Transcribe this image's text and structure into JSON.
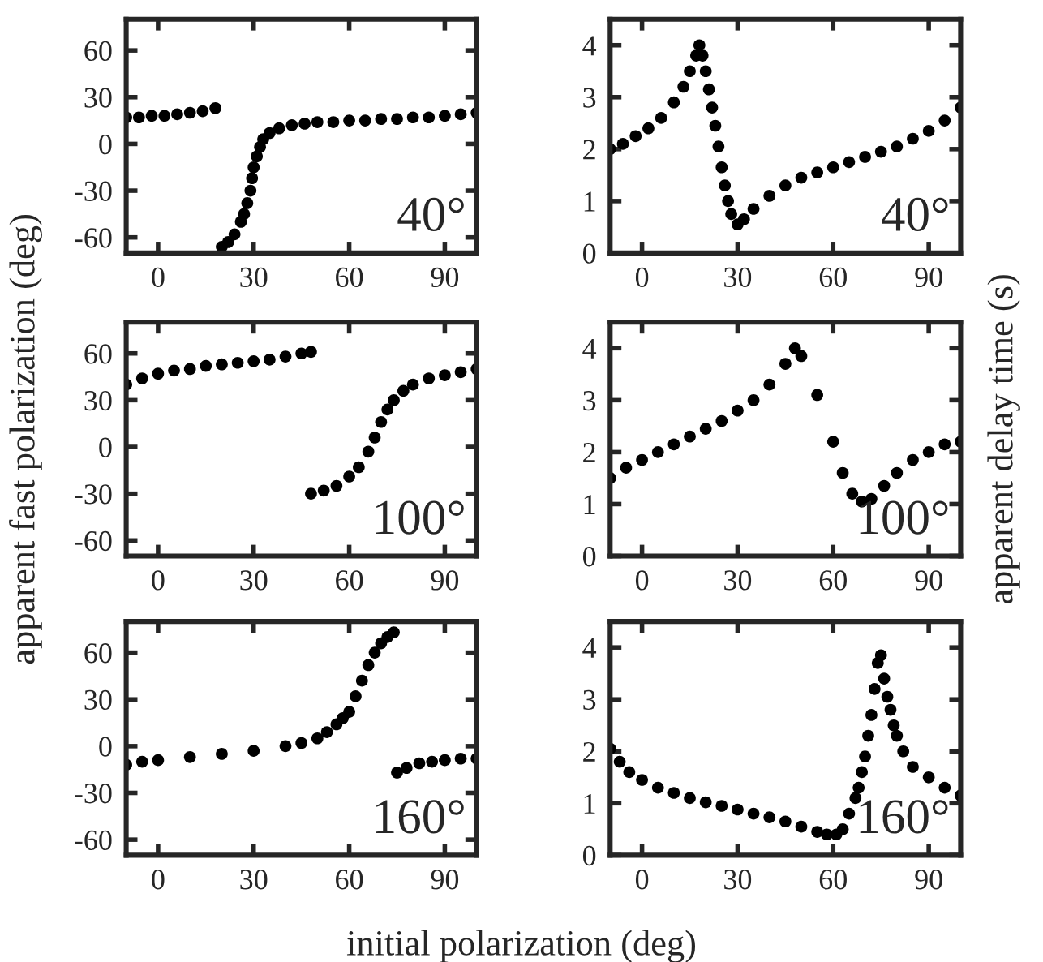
{
  "chart_data": [
    {
      "type": "scatter",
      "xlim": [
        -10,
        100
      ],
      "ylim": [
        -70,
        80
      ],
      "xticks": [
        0,
        30,
        60,
        90
      ],
      "yticks": [
        -60,
        -30,
        0,
        30,
        60
      ],
      "marker": "circle",
      "grid": false,
      "annotations": [
        "40°"
      ],
      "series": [
        {
          "color": "#000000",
          "x": [
            -10,
            -6,
            -2,
            2,
            6,
            10,
            14,
            18,
            20,
            22,
            24,
            26,
            27,
            28,
            29,
            29.5,
            30,
            31,
            32,
            33,
            35,
            38,
            42,
            46,
            50,
            55,
            60,
            65,
            70,
            75,
            80,
            85,
            90,
            95,
            100
          ],
          "values": [
            17,
            17,
            18,
            18,
            19,
            20,
            21,
            23,
            -66,
            -63,
            -58,
            -50,
            -45,
            -38,
            -30,
            -22,
            -15,
            -8,
            -2,
            3,
            7,
            10,
            12,
            13,
            14,
            14,
            15,
            15,
            16,
            16,
            17,
            17,
            18,
            19,
            20
          ]
        }
      ]
    },
    {
      "type": "scatter",
      "xlim": [
        -10,
        100
      ],
      "ylim": [
        0,
        4.5
      ],
      "xticks": [
        0,
        30,
        60,
        90
      ],
      "yticks": [
        0,
        1,
        2,
        3,
        4
      ],
      "marker": "circle",
      "grid": false,
      "annotations": [
        "40°"
      ],
      "series": [
        {
          "color": "#000000",
          "x": [
            -10,
            -6,
            -2,
            2,
            6,
            10,
            13,
            15,
            17,
            18,
            19,
            20,
            21,
            22,
            23,
            24,
            25,
            26,
            27,
            28,
            30,
            32,
            35,
            40,
            45,
            50,
            55,
            60,
            65,
            70,
            75,
            80,
            85,
            90,
            95,
            100
          ],
          "values": [
            2.0,
            2.1,
            2.25,
            2.4,
            2.6,
            2.9,
            3.2,
            3.5,
            3.8,
            4.0,
            3.8,
            3.5,
            3.15,
            2.8,
            2.45,
            2.05,
            1.65,
            1.3,
            1.0,
            0.75,
            0.55,
            0.65,
            0.85,
            1.1,
            1.3,
            1.45,
            1.55,
            1.65,
            1.75,
            1.85,
            1.95,
            2.05,
            2.2,
            2.35,
            2.55,
            2.8
          ]
        }
      ]
    },
    {
      "type": "scatter",
      "xlim": [
        -10,
        100
      ],
      "ylim": [
        -70,
        80
      ],
      "xticks": [
        0,
        30,
        60,
        90
      ],
      "yticks": [
        -60,
        -30,
        0,
        30,
        60
      ],
      "marker": "circle",
      "grid": false,
      "annotations": [
        "100°"
      ],
      "ylabel": "apparent fast polarization (deg)",
      "series": [
        {
          "color": "#000000",
          "x": [
            -10,
            -5,
            0,
            5,
            10,
            15,
            20,
            25,
            30,
            35,
            40,
            45,
            48,
            48,
            52,
            56,
            60,
            63,
            66,
            68,
            70,
            72,
            74,
            77,
            80,
            85,
            90,
            95,
            100
          ],
          "values": [
            40,
            44,
            47,
            49,
            50,
            52,
            53,
            54,
            55,
            56,
            58,
            60,
            61,
            -30,
            -28,
            -25,
            -19,
            -13,
            -3,
            6,
            16,
            24,
            30,
            36,
            40,
            44,
            46,
            48,
            50
          ]
        }
      ]
    },
    {
      "type": "scatter",
      "xlim": [
        -10,
        100
      ],
      "ylim": [
        0,
        4.5
      ],
      "xticks": [
        0,
        30,
        60,
        90
      ],
      "yticks": [
        0,
        1,
        2,
        3,
        4
      ],
      "marker": "circle",
      "grid": false,
      "annotations": [
        "100°"
      ],
      "ylabel": "apparent delay time (s)",
      "series": [
        {
          "color": "#000000",
          "x": [
            -10,
            -5,
            0,
            5,
            10,
            15,
            20,
            25,
            30,
            35,
            40,
            45,
            48,
            50,
            55,
            60,
            63,
            66,
            69,
            72,
            76,
            80,
            85,
            90,
            95,
            100
          ],
          "values": [
            1.5,
            1.7,
            1.85,
            2.0,
            2.15,
            2.3,
            2.45,
            2.6,
            2.8,
            3.0,
            3.3,
            3.7,
            4.0,
            3.85,
            3.1,
            2.2,
            1.6,
            1.2,
            1.05,
            1.1,
            1.35,
            1.6,
            1.85,
            2.0,
            2.15,
            2.2
          ]
        }
      ]
    },
    {
      "type": "scatter",
      "xlim": [
        -10,
        100
      ],
      "ylim": [
        -70,
        80
      ],
      "xticks": [
        0,
        30,
        60,
        90
      ],
      "yticks": [
        -60,
        -30,
        0,
        30,
        60
      ],
      "marker": "circle",
      "grid": false,
      "annotations": [
        "160°"
      ],
      "xlabel": "initial polarization (deg)",
      "series": [
        {
          "color": "#000000",
          "x": [
            -10,
            -5,
            0,
            10,
            20,
            30,
            40,
            45,
            50,
            53,
            56,
            58,
            60,
            62,
            64,
            66,
            68,
            70,
            72,
            74,
            75,
            78,
            82,
            86,
            90,
            95,
            100
          ],
          "values": [
            -12,
            -10,
            -9,
            -7,
            -5,
            -3,
            0,
            2,
            5,
            9,
            14,
            18,
            22,
            32,
            42,
            52,
            60,
            66,
            70,
            73,
            -17,
            -14,
            -11,
            -10,
            -9,
            -8,
            -8
          ]
        }
      ]
    },
    {
      "type": "scatter",
      "xlim": [
        -10,
        100
      ],
      "ylim": [
        0,
        4.5
      ],
      "xticks": [
        0,
        30,
        60,
        90
      ],
      "yticks": [
        0,
        1,
        2,
        3,
        4
      ],
      "marker": "circle",
      "grid": false,
      "annotations": [
        "160°"
      ],
      "series": [
        {
          "color": "#000000",
          "x": [
            -10,
            -7,
            -4,
            0,
            5,
            10,
            15,
            20,
            25,
            30,
            35,
            40,
            45,
            50,
            55,
            58,
            61,
            63,
            65,
            67,
            68,
            69,
            70,
            71,
            72,
            73,
            74,
            75,
            76,
            77,
            78,
            79,
            80,
            82,
            85,
            90,
            95,
            100
          ],
          "values": [
            2.05,
            1.8,
            1.6,
            1.45,
            1.3,
            1.2,
            1.1,
            1.02,
            0.95,
            0.88,
            0.8,
            0.73,
            0.65,
            0.55,
            0.45,
            0.4,
            0.4,
            0.5,
            0.8,
            1.1,
            1.3,
            1.6,
            1.9,
            2.3,
            2.7,
            3.2,
            3.7,
            3.85,
            3.4,
            3.05,
            2.8,
            2.5,
            2.3,
            2.0,
            1.7,
            1.5,
            1.3,
            1.15
          ]
        }
      ]
    }
  ]
}
